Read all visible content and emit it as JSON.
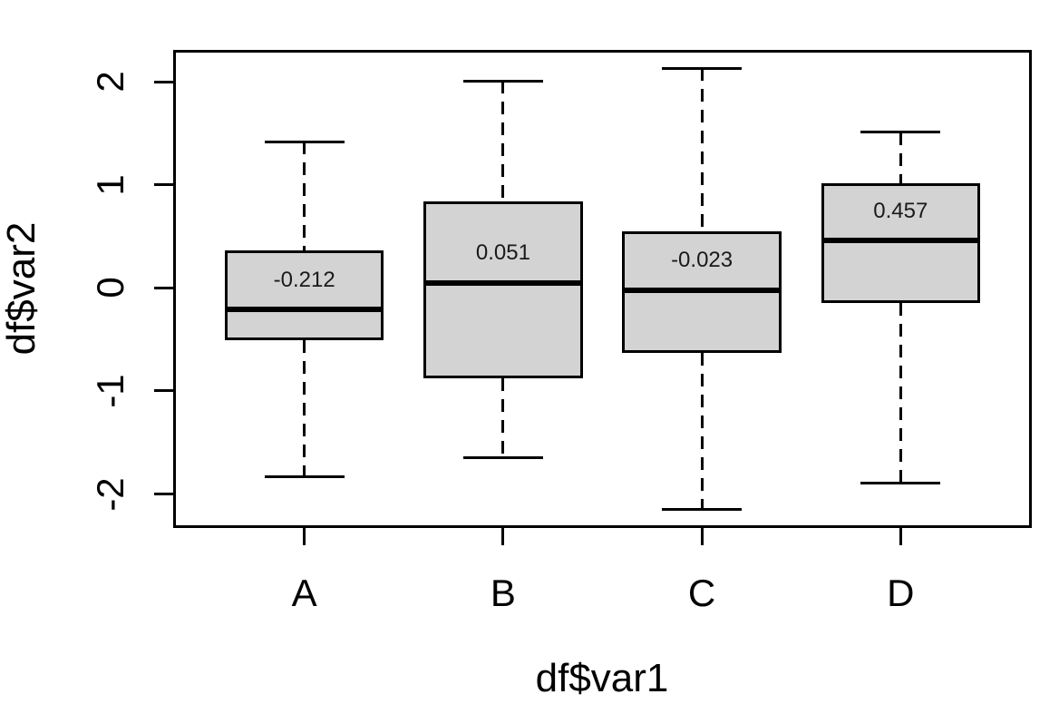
{
  "chart_data": {
    "type": "boxplot",
    "title": "",
    "xlabel": "df$var1",
    "ylabel": "df$var2",
    "categories": [
      "A",
      "B",
      "C",
      "D"
    ],
    "x_positions": [
      1,
      2,
      3,
      4
    ],
    "xlim": [
      0.34,
      4.66
    ],
    "ylim": [
      -2.33,
      2.31
    ],
    "y_ticks": [
      -2,
      -1,
      0,
      1,
      2
    ],
    "y_tick_labels": [
      "-2",
      "-1",
      "0",
      "1",
      "2"
    ],
    "grid": "off",
    "legend": "none",
    "box_width_units": 0.8,
    "whisker_cap_width_units": 0.4,
    "median_label_offset_units": 0.29,
    "series": [
      {
        "category": "A",
        "whisker_low": -1.83,
        "q1": -0.51,
        "median": -0.212,
        "q3": 0.36,
        "whisker_high": 1.42,
        "median_label": "-0.212"
      },
      {
        "category": "B",
        "whisker_low": -1.65,
        "q1": -0.88,
        "median": 0.051,
        "q3": 0.84,
        "whisker_high": 2.01,
        "median_label": "0.051"
      },
      {
        "category": "C",
        "whisker_low": -2.15,
        "q1": -0.63,
        "median": -0.023,
        "q3": 0.55,
        "whisker_high": 2.13,
        "median_label": "-0.023"
      },
      {
        "category": "D",
        "whisker_low": -1.89,
        "q1": -0.15,
        "median": 0.457,
        "q3": 1.02,
        "whisker_high": 1.51,
        "median_label": "0.457"
      }
    ],
    "colors": {
      "box_fill": "#d3d3d3",
      "line": "#000000",
      "background": "#ffffff",
      "median_label_text": "#1a1a1a"
    }
  }
}
